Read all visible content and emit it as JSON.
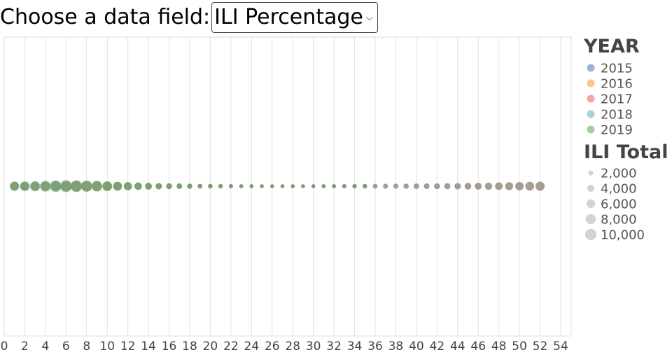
{
  "controls": {
    "field_label": "Choose a data field:",
    "selected_field": "ILI Percentage",
    "chevron_icon": "chevron-down-icon"
  },
  "chart_data": {
    "type": "scatter",
    "title": "",
    "xlabel": "",
    "ylabel": "",
    "xlim": [
      0,
      54
    ],
    "x_ticks": [
      0,
      2,
      4,
      6,
      8,
      10,
      12,
      14,
      16,
      18,
      20,
      22,
      24,
      26,
      28,
      30,
      32,
      34,
      36,
      38,
      40,
      42,
      44,
      46,
      48,
      50,
      52,
      54
    ],
    "x_grid": true,
    "legend_position": "right",
    "color_legend": {
      "title": "YEAR",
      "entries": [
        {
          "label": "2015",
          "color": "#9db3d6"
        },
        {
          "label": "2016",
          "color": "#ffc48a"
        },
        {
          "label": "2017",
          "color": "#f1a7a6"
        },
        {
          "label": "2018",
          "color": "#a9d1d6"
        },
        {
          "label": "2019",
          "color": "#a1d09a"
        }
      ]
    },
    "size_legend": {
      "title": "ILI Total",
      "entries": [
        {
          "label": "2,000",
          "value": 2000
        },
        {
          "label": "4,000",
          "value": 4000
        },
        {
          "label": "6,000",
          "value": 6000
        },
        {
          "label": "8,000",
          "value": 8000
        },
        {
          "label": "10,000",
          "value": 10000
        }
      ]
    },
    "points_note": "All points lie on one horizontal line; y is constant.",
    "series": [
      {
        "name": "2015",
        "color": "#4e79a7",
        "x": [
          1,
          2,
          3,
          4,
          5,
          6,
          7,
          8,
          9,
          10,
          11,
          12,
          13,
          14,
          15,
          16,
          17,
          18,
          19,
          20,
          21,
          22,
          23,
          24,
          25,
          26,
          27,
          28,
          29,
          30,
          31,
          32,
          33,
          34,
          35,
          36,
          37,
          38,
          39,
          40,
          41,
          42,
          43,
          44,
          45,
          46,
          47,
          48,
          49,
          50,
          51,
          52
        ],
        "size": [
          3600,
          3500,
          3700,
          4200,
          4800,
          5000,
          4800,
          4400,
          4000,
          3600,
          3300,
          2900,
          2500,
          2200,
          1900,
          1700,
          1500,
          1300,
          1100,
          1000,
          900,
          850,
          800,
          750,
          700,
          650,
          650,
          700,
          750,
          800,
          850,
          900,
          950,
          1000,
          1050,
          1100,
          1200,
          1300,
          1400,
          1500,
          1600,
          1700,
          1800,
          1900,
          2000,
          2100,
          2300,
          2500,
          2800,
          3100,
          3500,
          3900
        ]
      },
      {
        "name": "2016",
        "color": "#f28e2b",
        "x": [
          1,
          2,
          3,
          4,
          5,
          6,
          7,
          8,
          9,
          10,
          11,
          12,
          13,
          14,
          15,
          16,
          17,
          18,
          19,
          20,
          21,
          22,
          23,
          24,
          25,
          26,
          27,
          28,
          29,
          30,
          31,
          32,
          33,
          34,
          35,
          36,
          37,
          38,
          39,
          40,
          41,
          42,
          43,
          44,
          45,
          46,
          47,
          48,
          49,
          50,
          51,
          52
        ],
        "size": [
          3000,
          3100,
          3300,
          3600,
          4000,
          4500,
          5000,
          5400,
          5200,
          4800,
          4300,
          3800,
          3200,
          2700,
          2300,
          1900,
          1600,
          1400,
          1200,
          1050,
          950,
          850,
          780,
          720,
          680,
          640,
          620,
          640,
          680,
          720,
          780,
          850,
          920,
          1000,
          1080,
          1160,
          1250,
          1350,
          1450,
          1550,
          1650,
          1750,
          1850,
          2000,
          2150,
          2300,
          2500,
          2700,
          2950,
          3200,
          3500,
          3700
        ]
      },
      {
        "name": "2017",
        "color": "#e15759",
        "x": [
          1,
          2,
          3,
          4,
          5,
          6,
          7,
          8,
          9,
          10,
          11,
          12,
          13,
          14,
          15,
          16,
          17,
          18,
          19,
          20,
          21,
          22,
          23,
          24,
          25,
          26,
          27,
          28,
          29,
          30,
          31,
          32,
          33,
          34,
          35,
          36,
          37,
          38,
          39,
          40,
          41,
          42,
          43,
          44,
          45,
          46,
          47,
          48,
          49,
          50,
          51,
          52
        ],
        "size": [
          4000,
          4200,
          4600,
          5200,
          6000,
          6600,
          6800,
          6400,
          5800,
          5000,
          4300,
          3600,
          3000,
          2500,
          2100,
          1800,
          1550,
          1350,
          1180,
          1050,
          950,
          870,
          800,
          740,
          700,
          670,
          660,
          680,
          720,
          770,
          830,
          900,
          980,
          1060,
          1150,
          1250,
          1360,
          1480,
          1600,
          1750,
          1900,
          2100,
          2300,
          2550,
          2800,
          3100,
          3450,
          3850,
          4300,
          4800,
          5400,
          5900
        ]
      },
      {
        "name": "2018",
        "color": "#76b7b2",
        "x": [
          1,
          2,
          3,
          4,
          5,
          6,
          7,
          8,
          9,
          10,
          11,
          12,
          13,
          14,
          15,
          16,
          17,
          18,
          19,
          20,
          21,
          22,
          23,
          24,
          25,
          26,
          27,
          28,
          29,
          30,
          31,
          32,
          33,
          34,
          35,
          36,
          37,
          38,
          39,
          40,
          41,
          42,
          43,
          44,
          45,
          46,
          47,
          48,
          49,
          50,
          51,
          52
        ],
        "size": [
          6400,
          6800,
          7500,
          8600,
          9800,
          10400,
          10000,
          9000,
          7800,
          6600,
          5500,
          4500,
          3700,
          3000,
          2500,
          2100,
          1800,
          1550,
          1350,
          1200,
          1080,
          980,
          900,
          840,
          790,
          760,
          750,
          770,
          810,
          860,
          920,
          990,
          1070,
          1160,
          1260,
          1370,
          1490,
          1620,
          1760,
          1910,
          2070,
          2250,
          2450,
          2680,
          2930,
          3200,
          3500,
          3850,
          4250,
          4700,
          5200,
          5500
        ]
      },
      {
        "name": "2019",
        "color": "#59a14f",
        "x": [
          1,
          2,
          3,
          4,
          5,
          6,
          7,
          8,
          9,
          10,
          11,
          12,
          13,
          14,
          15,
          16,
          17,
          18,
          19,
          20,
          21,
          22,
          23,
          24,
          25,
          26,
          27,
          28,
          29,
          30,
          31,
          32,
          33,
          34,
          35
        ],
        "size": [
          5200,
          5400,
          5800,
          6600,
          7600,
          8400,
          8700,
          8300,
          7400,
          6400,
          5400,
          4500,
          3700,
          3100,
          2600,
          2200,
          1900,
          1650,
          1450,
          1280,
          1140,
          1020,
          920,
          840,
          780,
          730,
          700,
          690,
          700,
          720,
          750,
          790,
          830,
          880,
          930
        ]
      }
    ]
  }
}
